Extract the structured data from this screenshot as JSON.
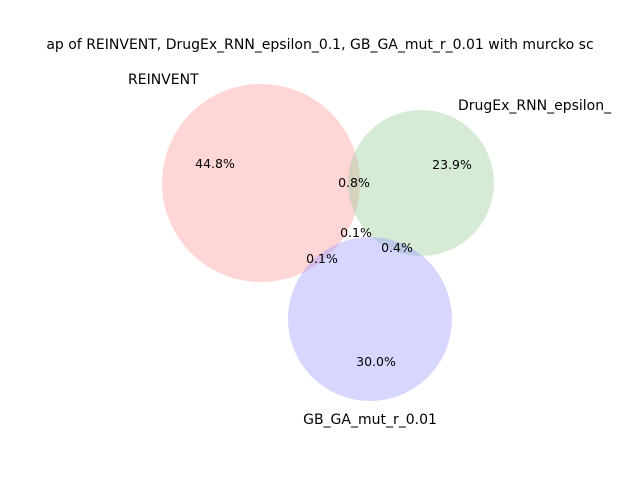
{
  "title": "ap of REINVENT, DrugEx_RNN_epsilon_0.1, GB_GA_mut_r_0.01 with murcko sc",
  "sets": [
    {
      "name": "REINVENT",
      "color": "#ff9999"
    },
    {
      "name": "DrugEx_RNN_epsilon_",
      "color": "#99cc99"
    },
    {
      "name": "GB_GA_mut_r_0.01",
      "color": "#9999ff"
    }
  ],
  "regions": {
    "reinvent_only": "44.8%",
    "drugex_only": "23.9%",
    "gbga_only": "30.0%",
    "reinvent_drugex": "0.8%",
    "reinvent_gbga": "0.1%",
    "drugex_gbga": "0.4%",
    "all_three": "0.1%"
  }
}
